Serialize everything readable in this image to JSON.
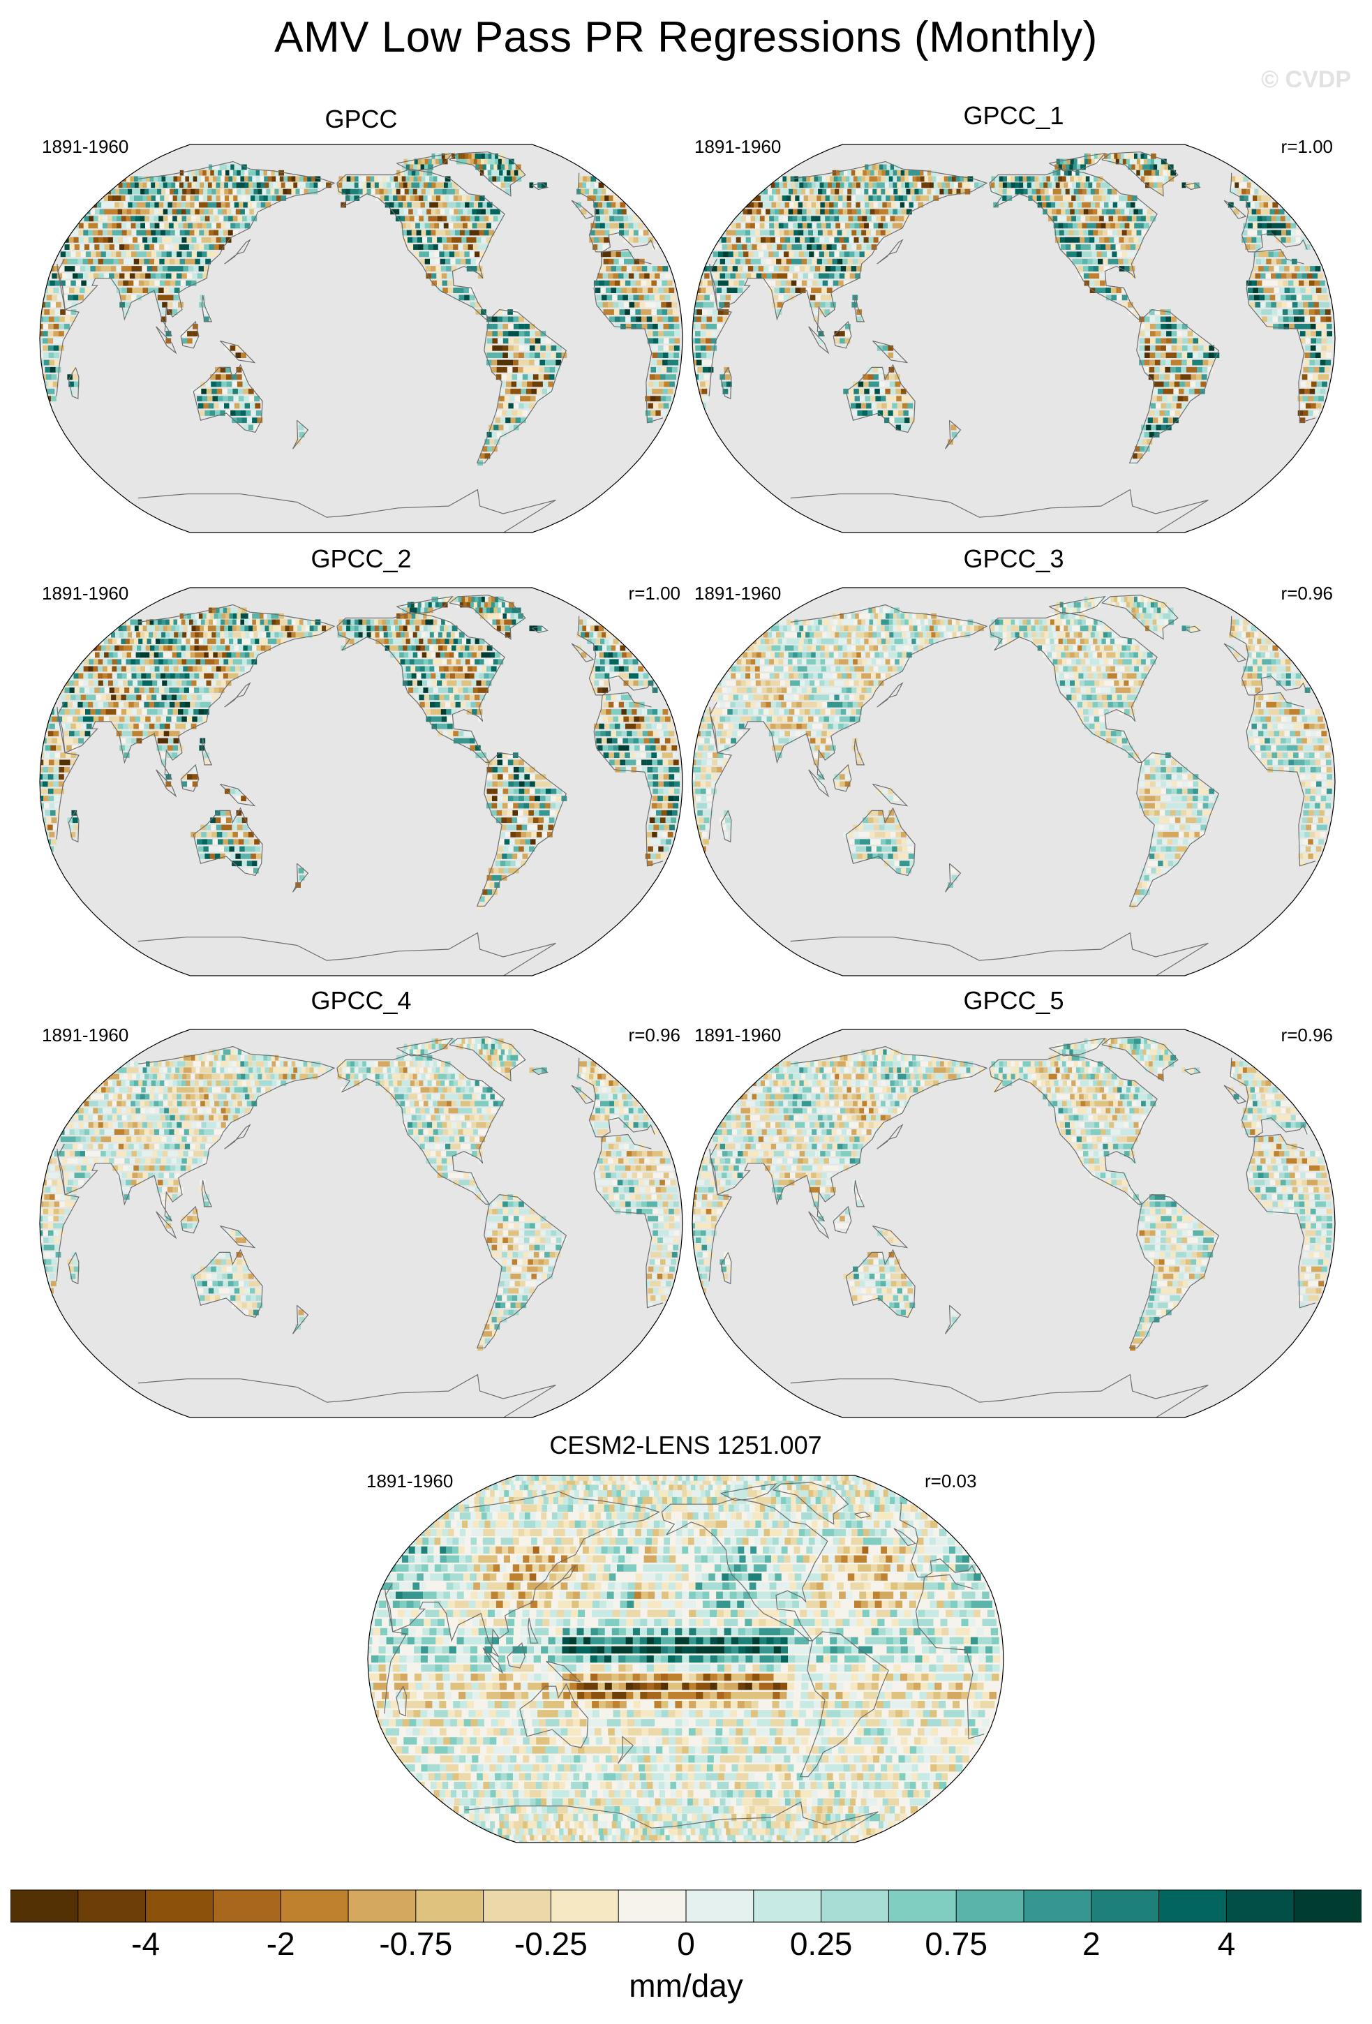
{
  "title": "AMV Low Pass PR Regressions (Monthly)",
  "watermark": "© CVDP",
  "panels": [
    {
      "name": "GPCC",
      "period": "1891-1960",
      "r": ""
    },
    {
      "name": "GPCC_1",
      "period": "1891-1960",
      "r": "r=1.00"
    },
    {
      "name": "GPCC_2",
      "period": "1891-1960",
      "r": "r=1.00"
    },
    {
      "name": "GPCC_3",
      "period": "1891-1960",
      "r": "r=0.96"
    },
    {
      "name": "GPCC_4",
      "period": "1891-1960",
      "r": "r=0.96"
    },
    {
      "name": "GPCC_5",
      "period": "1891-1960",
      "r": "r=0.96"
    },
    {
      "name": "CESM2-LENS 1251.007",
      "period": "1891-1960",
      "r": "r=0.03"
    }
  ],
  "colorbar": {
    "units": "mm/day",
    "tick_labels": [
      "-4",
      "-2",
      "-0.75",
      "-0.25",
      "0",
      "0.25",
      "0.75",
      "2",
      "4"
    ],
    "colors": [
      "#543005",
      "#6e3e08",
      "#8c510a",
      "#a8671c",
      "#bf812d",
      "#d4a85e",
      "#dfc27d",
      "#ecd9a9",
      "#f6e8c3",
      "#f5f3ec",
      "#e4f1ef",
      "#c7eae5",
      "#a8ddd5",
      "#80cdc1",
      "#5ab4a9",
      "#35978f",
      "#1d8179",
      "#01665e",
      "#024f47",
      "#003c30"
    ]
  },
  "chart_data": {
    "type": "heatmap",
    "title": "AMV Low Pass PR Regressions (Monthly)",
    "projection": "Robinson, Pacific-centered",
    "land_mask_color": "#e6e6e6",
    "units": "mm/day",
    "contour_levels": [
      -4,
      -2,
      -0.75,
      -0.25,
      0,
      0.25,
      0.75,
      2,
      4
    ],
    "panels": [
      {
        "dataset": "GPCC",
        "period": "1891-1960",
        "pattern_correlation": null,
        "coverage": "land only"
      },
      {
        "dataset": "GPCC_1",
        "period": "1891-1960",
        "pattern_correlation": 1.0,
        "coverage": "land only"
      },
      {
        "dataset": "GPCC_2",
        "period": "1891-1960",
        "pattern_correlation": 1.0,
        "coverage": "land only"
      },
      {
        "dataset": "GPCC_3",
        "period": "1891-1960",
        "pattern_correlation": 0.96,
        "coverage": "land only"
      },
      {
        "dataset": "GPCC_4",
        "period": "1891-1960",
        "pattern_correlation": 0.96,
        "coverage": "land only"
      },
      {
        "dataset": "GPCC_5",
        "period": "1891-1960",
        "pattern_correlation": 0.96,
        "coverage": "land only"
      },
      {
        "dataset": "CESM2-LENS 1251.007",
        "period": "1891-1960",
        "pattern_correlation": 0.03,
        "coverage": "global"
      }
    ]
  }
}
